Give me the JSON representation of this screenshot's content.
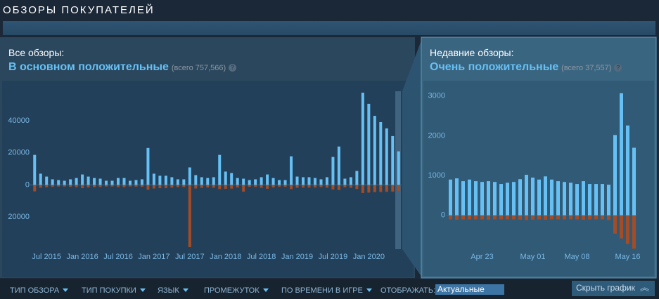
{
  "header": {
    "title": "ОБЗОРЫ ПОКУПАТЕЛЕЙ"
  },
  "overall": {
    "label": "Все обзоры:",
    "rating": "В основном положительные",
    "total": "(всего 757,566)",
    "help": "?"
  },
  "recent": {
    "label": "Недавние обзоры:",
    "rating": "Очень положительные",
    "total": "(всего 37,557)",
    "help": "?"
  },
  "chart_data": [
    {
      "type": "bar",
      "categories": [
        null,
        null,
        "Jul 2015",
        null,
        null,
        null,
        null,
        null,
        "Jan 2016",
        null,
        null,
        null,
        null,
        null,
        "Jul 2016",
        null,
        null,
        null,
        null,
        null,
        "Jan 2017",
        null,
        null,
        null,
        null,
        null,
        "Jul 2017",
        null,
        null,
        null,
        null,
        null,
        "Jan 2018",
        null,
        null,
        null,
        null,
        null,
        "Jul 2018",
        null,
        null,
        null,
        null,
        null,
        "Jan 2019",
        null,
        null,
        null,
        null,
        null,
        "Jul 2019",
        null,
        null,
        null,
        null,
        null,
        "Jan 2020",
        null,
        null,
        null,
        null,
        null
      ],
      "series": [
        {
          "color": "#66c0f4",
          "values": [
            18700,
            7000,
            5200,
            3500,
            3000,
            2600,
            3500,
            4300,
            6500,
            5200,
            4300,
            3900,
            2600,
            2600,
            4300,
            4300,
            2600,
            3000,
            3500,
            23000,
            7000,
            5700,
            5700,
            4800,
            3500,
            3500,
            10900,
            6100,
            4800,
            4300,
            4800,
            18700,
            8300,
            7400,
            4300,
            3900,
            3000,
            3500,
            4800,
            6500,
            4300,
            3000,
            3000,
            17800,
            5200,
            4800,
            4800,
            4300,
            3500,
            4800,
            17400,
            23900,
            3900,
            4800,
            8700,
            57400,
            50500,
            43000,
            39100,
            35200,
            30400,
            20900
          ]
        },
        {
          "color": "#a34c25",
          "values": [
            -4000,
            -1800,
            -1500,
            -1200,
            -1000,
            -1000,
            -1200,
            -1400,
            -2000,
            -1600,
            -1400,
            -1300,
            -1000,
            -1000,
            -1400,
            -1400,
            -1000,
            -1100,
            -1200,
            -3000,
            -2200,
            -2000,
            -2000,
            -1700,
            -1400,
            -1400,
            -38700,
            -2200,
            -1800,
            -1600,
            -1800,
            -2600,
            -2400,
            -2300,
            -1600,
            -4200,
            -1200,
            -1300,
            -1800,
            -2400,
            -1600,
            -1200,
            -1200,
            -2600,
            -1800,
            -1700,
            -1700,
            -1600,
            -1400,
            -1700,
            -2800,
            -3200,
            -1500,
            -1800,
            -2500,
            -5000,
            -4800,
            -4500,
            -4400,
            -4300,
            -4200,
            -3800
          ]
        }
      ],
      "ylim": [
        -40000,
        64000
      ],
      "yticks": [
        {
          "value": -20000,
          "label": "20000"
        },
        0,
        20000,
        40000
      ]
    },
    {
      "type": "bar",
      "categories": [
        null,
        null,
        null,
        null,
        null,
        "Apr 23",
        null,
        null,
        null,
        null,
        null,
        null,
        null,
        "May 01",
        null,
        null,
        null,
        null,
        null,
        null,
        "May 08",
        null,
        null,
        null,
        null,
        null,
        null,
        null,
        "May 16",
        null
      ],
      "series": [
        {
          "color": "#66c0f4",
          "values": [
            900,
            930,
            860,
            900,
            860,
            840,
            860,
            840,
            790,
            820,
            840,
            910,
            1020,
            950,
            900,
            980,
            900,
            860,
            840,
            820,
            790,
            860,
            790,
            790,
            790,
            770,
            2020,
            3070,
            2260,
            1700
          ]
        },
        {
          "color": "#a34c25",
          "values": [
            -100,
            -110,
            -100,
            -100,
            -100,
            -100,
            -110,
            -100,
            -100,
            -100,
            -100,
            -110,
            -120,
            -110,
            -100,
            -110,
            -100,
            -100,
            -100,
            -100,
            -100,
            -110,
            -100,
            -100,
            -100,
            -120,
            -460,
            -580,
            -720,
            -840
          ]
        }
      ],
      "ylim": [
        -850,
        3350
      ],
      "yticks": [
        0,
        1000,
        2000,
        3000
      ]
    }
  ],
  "filters": [
    "ТИП ОБЗОРА",
    "ТИП ПОКУПКИ",
    "ЯЗЫК",
    "ПРОМЕЖУТОК",
    "ПО ВРЕМЕНИ В ИГРЕ"
  ],
  "display": {
    "label": "ОТОБРАЖАТЬ:",
    "selected": "Актуальные"
  },
  "hide_button": "Скрыть график"
}
